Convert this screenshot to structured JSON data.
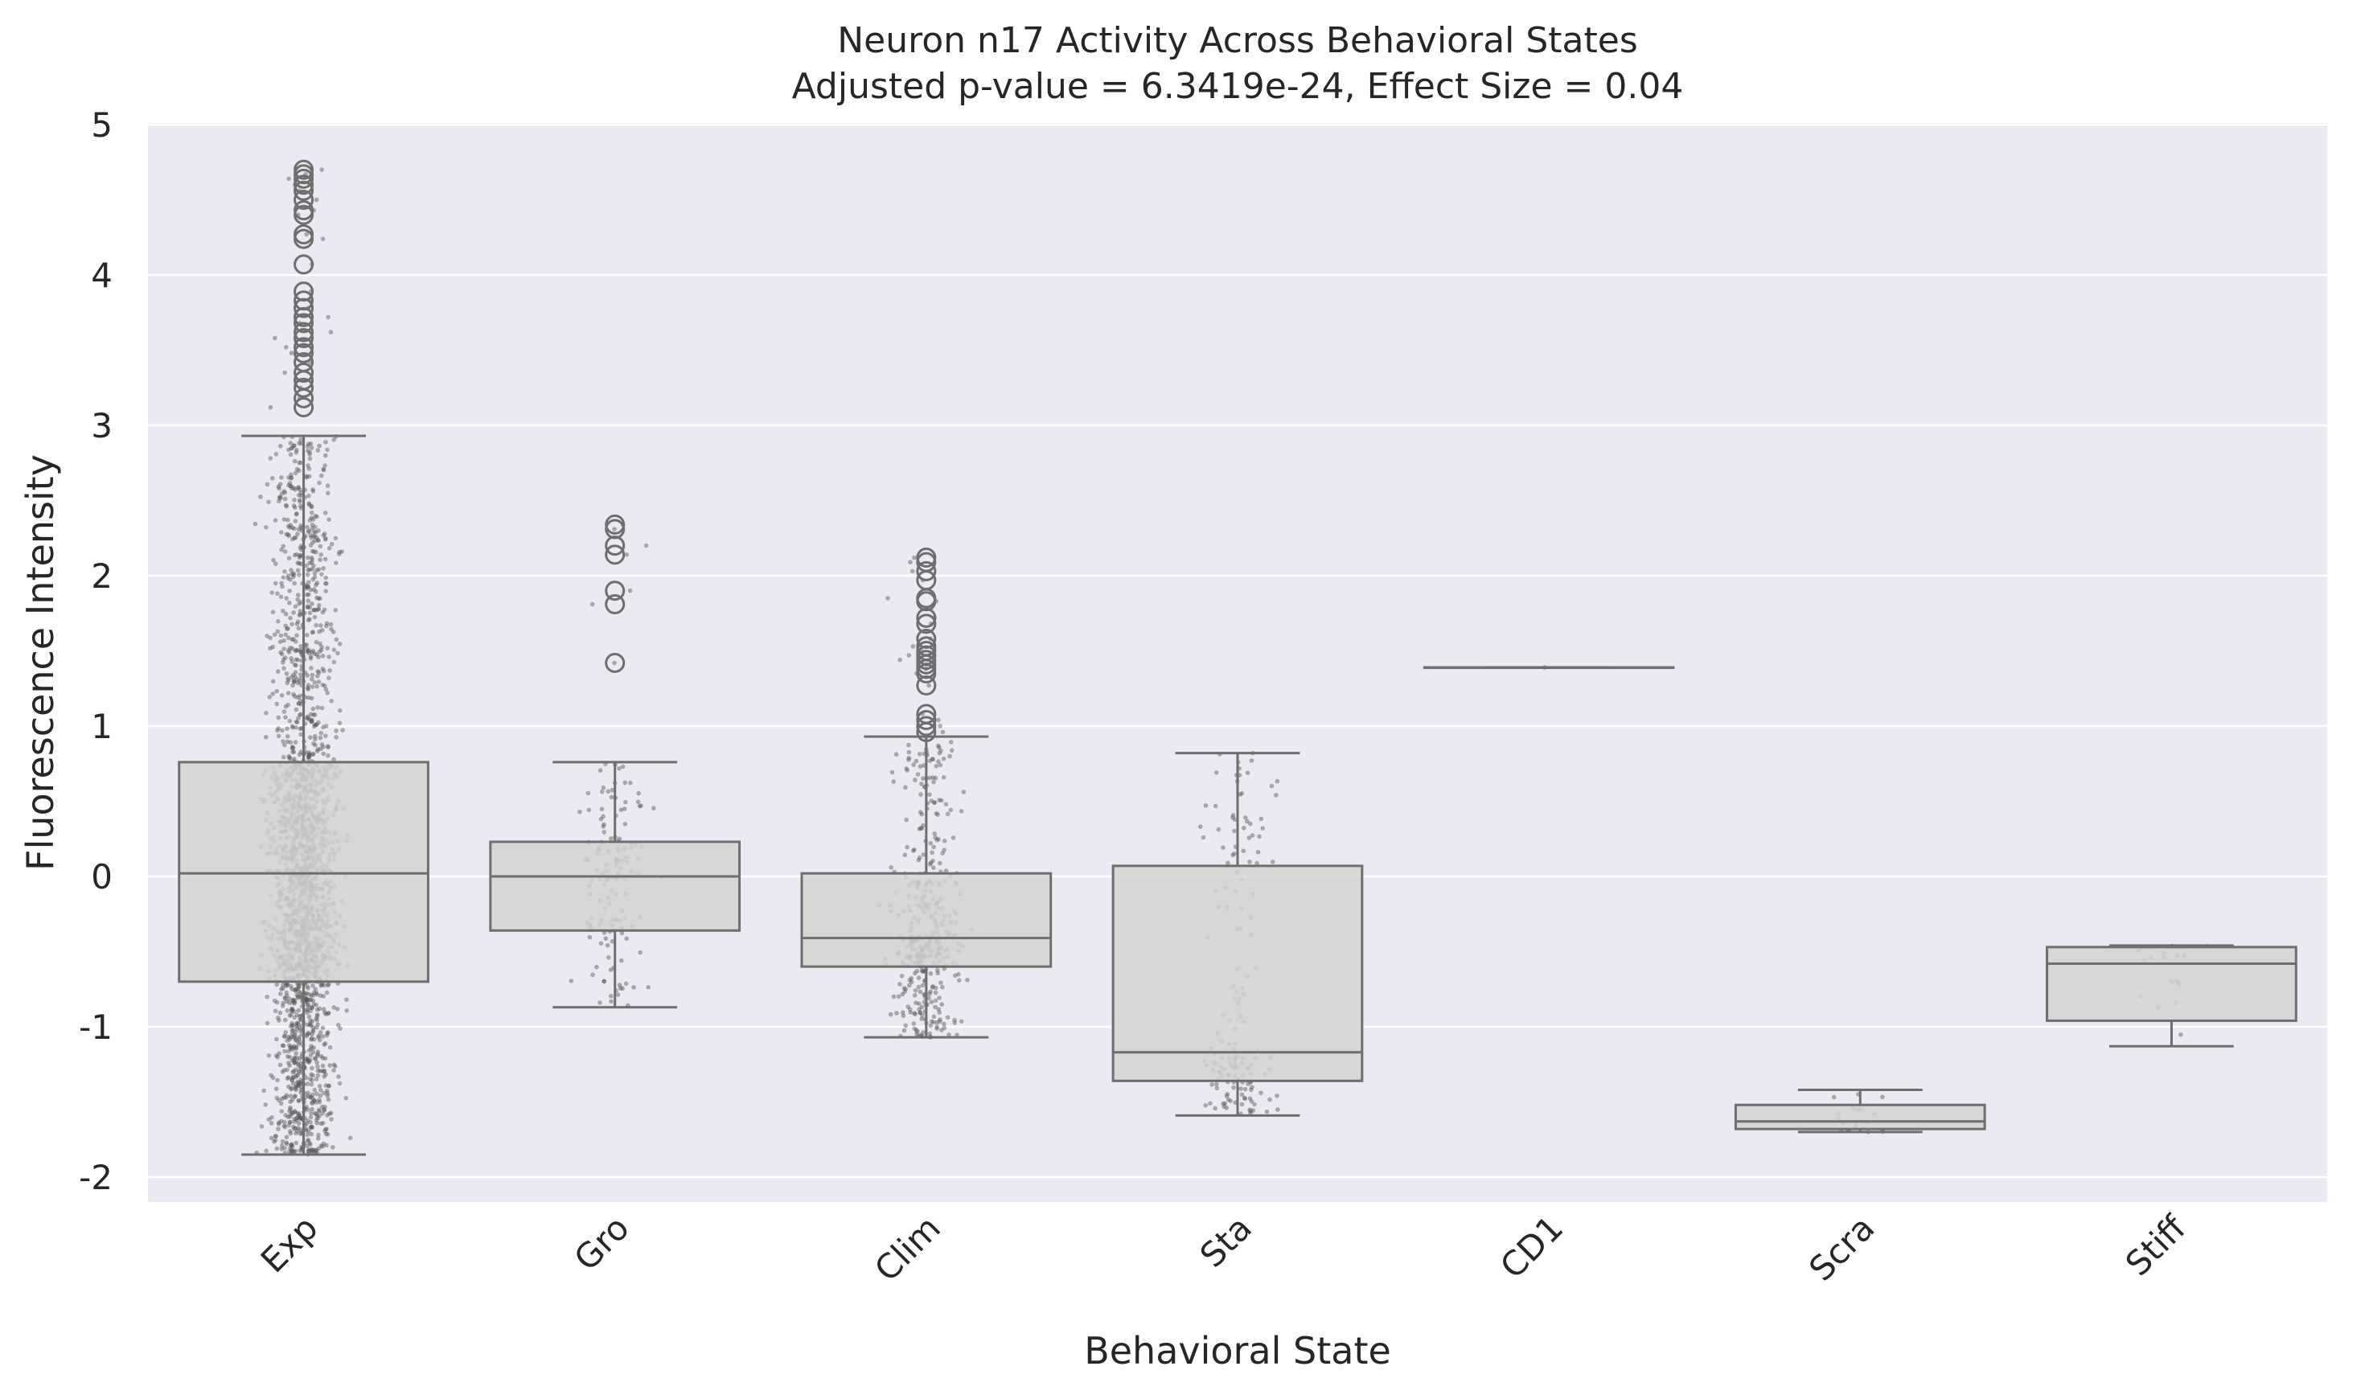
{
  "chart_data": {
    "type": "box",
    "title": "Neuron n17 Activity Across Behavioral States",
    "subtitle": "Adjusted p-value = 6.3419e-24, Effect Size = 0.04",
    "xlabel": "Behavioral State",
    "ylabel": "Fluorescence Intensity",
    "ylim": [
      -2.17,
      5.0
    ],
    "yticks": [
      -2,
      -1,
      0,
      1,
      2,
      3,
      4,
      5
    ],
    "ytick_labels": [
      "-2",
      "-1",
      "0",
      "1",
      "2",
      "3",
      "4",
      "5"
    ],
    "grid": true,
    "categories": [
      "Exp",
      "Gro",
      "Clim",
      "Sta",
      "CD1",
      "Scra",
      "Stiff"
    ],
    "boxes": [
      {
        "category": "Exp",
        "whisker_low": -1.85,
        "q1": -0.7,
        "median": 0.02,
        "q3": 0.76,
        "whisker_high": 2.93,
        "outliers": [
          3.12,
          3.18,
          3.25,
          3.3,
          3.35,
          3.42,
          3.48,
          3.52,
          3.58,
          3.62,
          3.68,
          3.72,
          3.78,
          3.83,
          3.89,
          4.07,
          4.24,
          4.27,
          4.4,
          4.43,
          4.5,
          4.56,
          4.6,
          4.64,
          4.67,
          4.7
        ],
        "n_points": 2200
      },
      {
        "category": "Gro",
        "whisker_low": -0.87,
        "q1": -0.36,
        "median": 0.0,
        "q3": 0.23,
        "whisker_high": 0.76,
        "outliers": [
          1.42,
          1.81,
          1.9,
          2.14,
          2.2,
          2.31,
          2.34
        ],
        "n_points": 140
      },
      {
        "category": "Clim",
        "whisker_low": -1.07,
        "q1": -0.6,
        "median": -0.41,
        "q3": 0.02,
        "whisker_high": 0.93,
        "outliers": [
          0.96,
          1.0,
          1.04,
          1.08,
          1.27,
          1.35,
          1.38,
          1.41,
          1.44,
          1.47,
          1.5,
          1.53,
          1.58,
          1.68,
          1.72,
          1.83,
          1.85,
          1.97,
          2.03,
          2.09,
          2.12
        ],
        "n_points": 400
      },
      {
        "category": "Sta",
        "whisker_low": -1.59,
        "q1": -1.36,
        "median": -1.17,
        "q3": 0.07,
        "whisker_high": 0.82,
        "outliers": [],
        "n_points": 160
      },
      {
        "category": "CD1",
        "whisker_low": 1.39,
        "q1": 1.39,
        "median": 1.39,
        "q3": 1.39,
        "whisker_high": 1.39,
        "outliers": [],
        "n_points": 1
      },
      {
        "category": "Scra",
        "whisker_low": -1.7,
        "q1": -1.68,
        "median": -1.63,
        "q3": -1.52,
        "whisker_high": -1.42,
        "outliers": [],
        "n_points": 20
      },
      {
        "category": "Stiff",
        "whisker_low": -1.13,
        "q1": -0.96,
        "median": -0.58,
        "q3": -0.47,
        "whisker_high": -0.46,
        "outliers": [],
        "n_points": 22
      }
    ]
  },
  "colors": {
    "plot_background": "#eaeaf2",
    "grid": "#ffffff",
    "box_fill": "#d3d3d3",
    "box_line": "#6e6e6e",
    "points": "#555555",
    "text": "#262626"
  }
}
